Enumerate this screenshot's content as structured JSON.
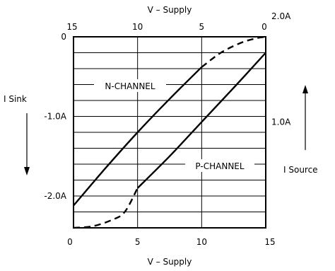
{
  "chart_data": {
    "type": "line",
    "x_top_label": "V – Supply",
    "x_bottom_label": "V – Supply",
    "x_top_ticks": [
      "15",
      "10",
      "5",
      "0"
    ],
    "x_bottom_ticks": [
      "0",
      "5",
      "10",
      "15"
    ],
    "y_left_label": "I Sink",
    "y_right_label": "I Source",
    "y_left_ticks": [
      {
        "label": "0",
        "value": 0
      },
      {
        "label": "-1.0A",
        "value": -1.0
      },
      {
        "label": "-2.0A",
        "value": -2.0
      }
    ],
    "y_right_ticks": [
      {
        "label": "2.0A",
        "value": 2.0
      },
      {
        "label": "1.0A",
        "value": 1.0
      }
    ],
    "xlim": [
      0,
      15
    ],
    "ylim_sink": [
      -2.4,
      0
    ],
    "grid": true,
    "series": [
      {
        "name": "N-CHANNEL",
        "axis": "sink",
        "solid": [
          [
            0,
            -2.12
          ],
          [
            2.5,
            -1.65
          ],
          [
            5,
            -1.2
          ],
          [
            7.5,
            -0.78
          ],
          [
            10,
            -0.38
          ]
        ],
        "dashed": [
          [
            10,
            -0.38
          ],
          [
            11.5,
            -0.2
          ],
          [
            13,
            -0.08
          ],
          [
            14.2,
            -0.02
          ],
          [
            15,
            0
          ]
        ]
      },
      {
        "name": "P-CHANNEL",
        "axis": "sink",
        "dashed": [
          [
            0,
            -2.4
          ],
          [
            1.5,
            -2.38
          ],
          [
            3,
            -2.3
          ],
          [
            4,
            -2.2
          ],
          [
            5,
            -1.9
          ]
        ],
        "solid": [
          [
            5,
            -1.9
          ],
          [
            7.5,
            -1.5
          ],
          [
            10,
            -1.07
          ],
          [
            12.5,
            -0.64
          ],
          [
            15,
            -0.2
          ]
        ]
      }
    ]
  }
}
